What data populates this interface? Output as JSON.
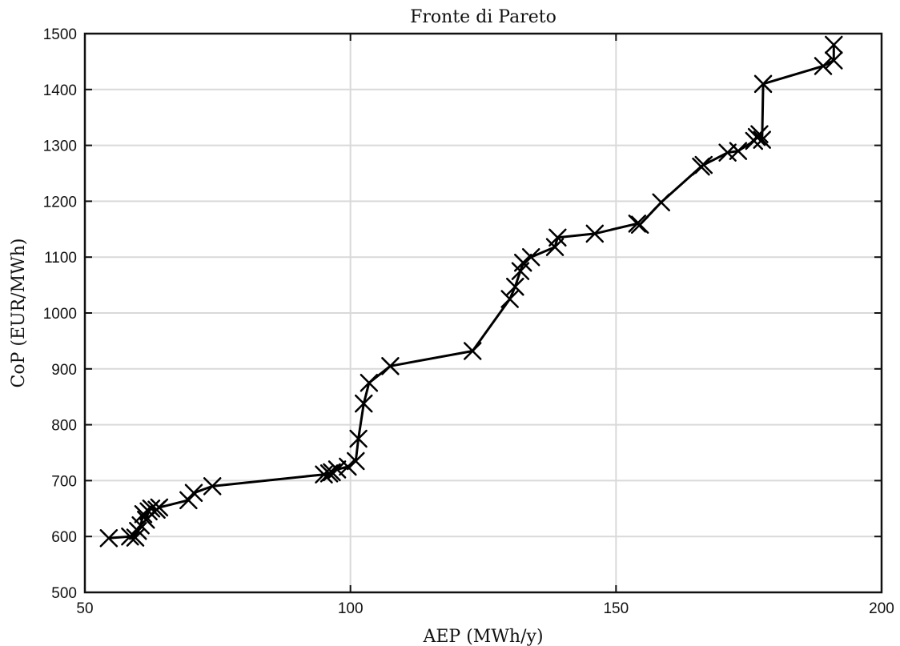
{
  "chart_data": {
    "type": "line",
    "title": "Fronte di Pareto",
    "xlabel": "AEP (MWh/y)",
    "ylabel": "CoP (EUR/MWh)",
    "xlim": [
      50,
      200
    ],
    "ylim": [
      500,
      1500
    ],
    "xticks": [
      50,
      100,
      150,
      200
    ],
    "yticks": [
      500,
      600,
      700,
      800,
      900,
      1000,
      1100,
      1200,
      1300,
      1400,
      1500
    ],
    "grid": true,
    "marker": "x",
    "line_color": "#000000",
    "series": [
      {
        "x": [
          54.5,
          58.5,
          59.5,
          60,
          60.5,
          61,
          61.5,
          62,
          62.5,
          63.5,
          64,
          69.5,
          70.5,
          74,
          95,
          96,
          96.5,
          97.5,
          99.5,
          101,
          101.5,
          102.5,
          103.5,
          107.5,
          123,
          130,
          131,
          132,
          132.5,
          134,
          138.5,
          139,
          146,
          154,
          154.5,
          158.5,
          166,
          166.5,
          171,
          173,
          176,
          176.5,
          177,
          177.5,
          177.7,
          189,
          191,
          191
        ],
        "y": [
          597,
          600,
          598,
          610,
          620,
          640,
          630,
          645,
          650,
          648,
          652,
          665,
          678,
          690,
          711,
          713,
          715,
          720,
          725,
          735,
          775,
          838,
          875,
          905,
          932,
          1025,
          1047,
          1075,
          1090,
          1100,
          1118,
          1135,
          1142,
          1160,
          1158,
          1198,
          1262,
          1265,
          1287,
          1290,
          1308,
          1315,
          1320,
          1310,
          1410,
          1442,
          1452,
          1480
        ]
      }
    ]
  }
}
